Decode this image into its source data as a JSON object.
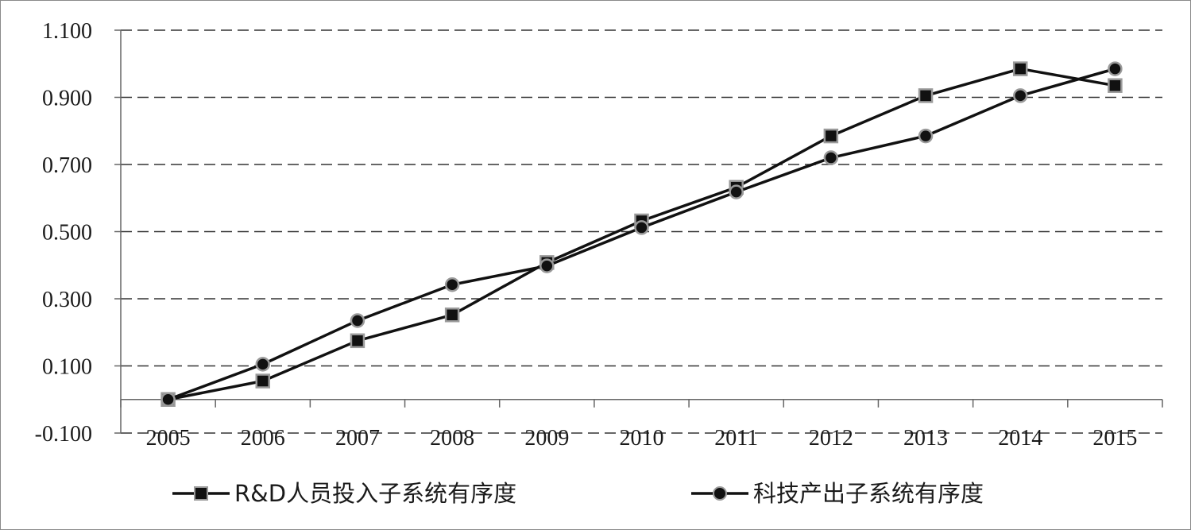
{
  "chart_data": {
    "type": "line",
    "title": "",
    "xlabel": "",
    "ylabel": "",
    "categories": [
      "2005",
      "2006",
      "2007",
      "2008",
      "2009",
      "2010",
      "2011",
      "2012",
      "2013",
      "2014",
      "2015"
    ],
    "y_ticks": [
      "1.100",
      "0.900",
      "0.700",
      "0.500",
      "0.300",
      "0.100",
      "-0.100"
    ],
    "ylim": [
      -0.1,
      1.1
    ],
    "grid": "horizontal dashed",
    "legend_position": "bottom",
    "series": [
      {
        "name": "R&D人员投入子系统有序度",
        "marker": "square",
        "values": [
          0.0,
          0.055,
          0.175,
          0.252,
          0.408,
          0.532,
          0.632,
          0.785,
          0.905,
          0.985,
          0.935
        ]
      },
      {
        "name": "科技产出子系统有序度",
        "marker": "circle",
        "values": [
          0.0,
          0.105,
          0.235,
          0.342,
          0.398,
          0.512,
          0.618,
          0.72,
          0.785,
          0.905,
          0.985
        ]
      }
    ],
    "colors": {
      "line": "#111111",
      "marker_fill": "#111111",
      "marker_edge": "#9a9a9a",
      "grid": "#333333"
    }
  }
}
